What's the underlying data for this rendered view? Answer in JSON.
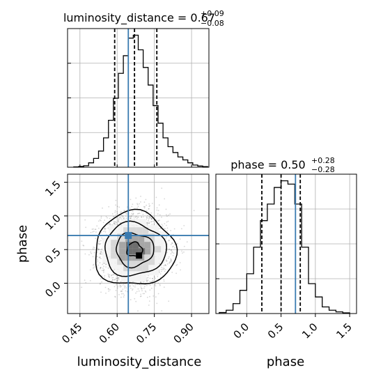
{
  "chart_data": {
    "type": "corner",
    "parameters": [
      "luminosity_distance",
      "phase"
    ],
    "titles": {
      "luminosity_distance": {
        "prefix": "luminosity_distance = 0.67",
        "plus": "+0.09",
        "minus": "−0.08"
      },
      "phase": {
        "prefix": "phase = 0.50",
        "plus": "+0.28",
        "minus": "−0.28"
      }
    },
    "xlabels": [
      "luminosity_distance",
      "phase"
    ],
    "ylabel": "phase",
    "injection": {
      "luminosity_distance": 0.645,
      "phase": 0.71
    },
    "grid": true,
    "line_color": "#000000",
    "truth_color": "#3a7bb0",
    "hist_luminosity_distance": {
      "xlim": [
        0.4,
        0.97
      ],
      "bin_edges": [
        0.425,
        0.445,
        0.465,
        0.485,
        0.505,
        0.525,
        0.545,
        0.565,
        0.585,
        0.605,
        0.625,
        0.645,
        0.665,
        0.685,
        0.705,
        0.725,
        0.745,
        0.765,
        0.785,
        0.805,
        0.825,
        0.845,
        0.865,
        0.885,
        0.905,
        0.925,
        0.945,
        0.965
      ],
      "counts": [
        2,
        5,
        10,
        30,
        60,
        110,
        200,
        320,
        470,
        640,
        760,
        880,
        900,
        800,
        680,
        560,
        420,
        300,
        200,
        140,
        100,
        70,
        50,
        30,
        15,
        8,
        4
      ],
      "quantiles": [
        0.59,
        0.67,
        0.76
      ],
      "xticks": [
        0.45,
        0.6,
        0.75,
        0.9
      ],
      "xtick_labels": [
        "0.45",
        "0.60",
        "0.75",
        "0.90"
      ]
    },
    "hist_phase": {
      "xlim": [
        -0.45,
        1.6
      ],
      "bin_edges": [
        -0.4,
        -0.3,
        -0.2,
        -0.1,
        0.0,
        0.1,
        0.2,
        0.3,
        0.4,
        0.5,
        0.6,
        0.7,
        0.8,
        0.9,
        1.0,
        1.1,
        1.2,
        1.3,
        1.4,
        1.5
      ],
      "counts": [
        3,
        10,
        30,
        70,
        120,
        200,
        280,
        330,
        380,
        400,
        390,
        330,
        200,
        90,
        50,
        20,
        10,
        5,
        2
      ],
      "quantiles": [
        0.22,
        0.5,
        0.78
      ],
      "xticks": [
        0.0,
        0.5,
        1.0,
        1.5
      ],
      "xtick_labels": [
        "0.0",
        "0.5",
        "1.0",
        "1.5"
      ]
    },
    "joint": {
      "xlim": [
        0.4,
        0.97
      ],
      "ylim": [
        -0.45,
        1.62
      ],
      "xticks": [
        0.45,
        0.6,
        0.75,
        0.9
      ],
      "xtick_labels": [
        "0.45",
        "0.60",
        "0.75",
        "0.90"
      ],
      "yticks": [
        0.0,
        0.5,
        1.0,
        1.5
      ],
      "ytick_labels": [
        "0.0",
        "0.5",
        "1.0",
        "1.5"
      ],
      "center": [
        0.67,
        0.5
      ],
      "spread": [
        0.085,
        0.28
      ]
    }
  }
}
